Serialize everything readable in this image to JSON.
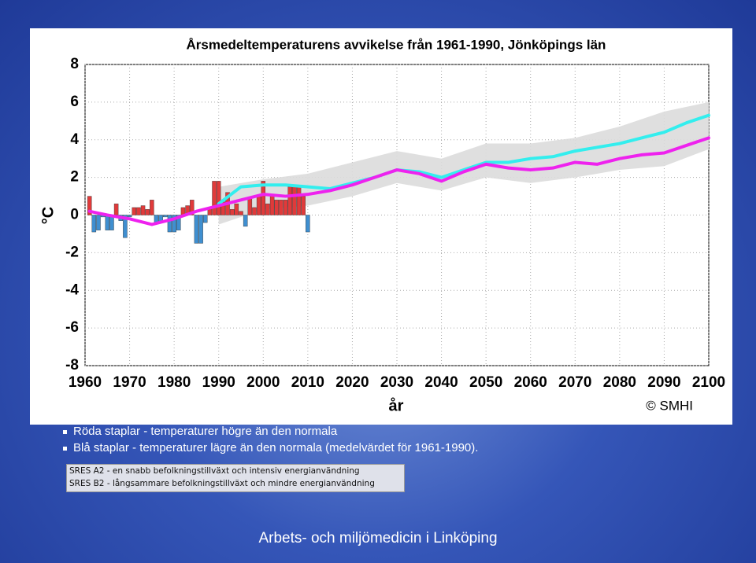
{
  "chart_data": {
    "type": "bar",
    "title": "Årsmedeltemperaturens avvikelse från 1961-1990, Jönköpings län",
    "xlabel": "år",
    "ylabel": "°C",
    "credit": "© SMHI",
    "xlim": [
      1960,
      2100
    ],
    "ylim": [
      -8,
      8
    ],
    "xticks": [
      1960,
      1970,
      1980,
      1990,
      2000,
      2010,
      2020,
      2030,
      2040,
      2050,
      2060,
      2070,
      2080,
      2090,
      2100
    ],
    "yticks": [
      -8,
      -6,
      -4,
      -2,
      0,
      2,
      4,
      6,
      8
    ],
    "grid": true,
    "series": [
      {
        "type": "band",
        "color": "#dcdcdc",
        "x": [
          1990,
          2000,
          2010,
          2020,
          2030,
          2040,
          2050,
          2060,
          2070,
          2080,
          2090,
          2100
        ],
        "low": [
          -0.5,
          0.3,
          0.5,
          1.0,
          1.7,
          1.3,
          2.0,
          1.7,
          2.0,
          2.4,
          2.6,
          3.5
        ],
        "high": [
          1.5,
          1.9,
          2.2,
          2.8,
          3.4,
          3.0,
          3.8,
          3.8,
          4.1,
          4.7,
          5.5,
          6.0
        ]
      },
      {
        "type": "bar",
        "colors": {
          "positive": "#e03a3a",
          "negative": "#3f8fd0"
        },
        "x": [
          1961,
          1962,
          1963,
          1964,
          1965,
          1966,
          1967,
          1968,
          1969,
          1970,
          1971,
          1972,
          1973,
          1974,
          1975,
          1976,
          1977,
          1978,
          1979,
          1980,
          1981,
          1982,
          1983,
          1984,
          1985,
          1986,
          1987,
          1988,
          1989,
          1990,
          1991,
          1992,
          1993,
          1994,
          1995,
          1996,
          1997,
          1998,
          1999,
          2000,
          2001,
          2002,
          2003,
          2004,
          2005,
          2006,
          2007,
          2008,
          2009,
          2010
        ],
        "values": [
          1.0,
          -0.9,
          -0.8,
          -0.1,
          -0.8,
          -0.8,
          0.6,
          -0.3,
          -1.2,
          -0.1,
          0.4,
          0.4,
          0.5,
          0.3,
          0.8,
          -0.4,
          -0.4,
          -0.1,
          -0.9,
          -0.9,
          -0.8,
          0.4,
          0.5,
          0.8,
          -1.5,
          -1.5,
          -0.4,
          0.4,
          1.8,
          1.8,
          0.7,
          1.2,
          0.3,
          0.6,
          0.2,
          -0.6,
          0.9,
          0.4,
          1.0,
          1.8,
          0.6,
          1.0,
          0.8,
          0.8,
          0.8,
          1.5,
          1.6,
          1.5,
          1.0,
          -0.9
        ]
      },
      {
        "type": "line",
        "color": "#33eeee",
        "x": [
          1961,
          1965,
          1970,
          1975,
          1980,
          1985,
          1990,
          1995,
          2000,
          2005,
          2010,
          2015,
          2020,
          2025,
          2030,
          2035,
          2040,
          2045,
          2050,
          2055,
          2060,
          2065,
          2070,
          2075,
          2080,
          2085,
          2090,
          2095,
          2100
        ],
        "values": [
          null,
          null,
          null,
          null,
          null,
          null,
          0.6,
          1.5,
          1.6,
          1.6,
          1.5,
          1.4,
          1.7,
          2.0,
          2.4,
          2.3,
          2.0,
          2.4,
          2.8,
          2.8,
          3.0,
          3.1,
          3.4,
          3.6,
          3.8,
          4.1,
          4.4,
          4.9,
          5.3
        ]
      },
      {
        "type": "line",
        "color": "#ee22ee",
        "x": [
          1961,
          1965,
          1970,
          1975,
          1980,
          1985,
          1990,
          1995,
          2000,
          2005,
          2010,
          2015,
          2020,
          2025,
          2030,
          2035,
          2040,
          2045,
          2050,
          2055,
          2060,
          2065,
          2070,
          2075,
          2080,
          2085,
          2090,
          2095,
          2100
        ],
        "values": [
          0.2,
          0.0,
          -0.2,
          -0.5,
          -0.2,
          0.2,
          0.5,
          0.8,
          1.1,
          1.0,
          1.1,
          1.3,
          1.6,
          2.0,
          2.4,
          2.2,
          1.8,
          2.3,
          2.7,
          2.5,
          2.4,
          2.5,
          2.8,
          2.7,
          3.0,
          3.2,
          3.3,
          3.7,
          4.1
        ]
      }
    ]
  },
  "notes": {
    "bullets": [
      "Röda staplar - temperaturer högre än den normala",
      "Blå staplar - temperaturer lägre än den normala (medelvärdet för 1961-1990)."
    ],
    "scenarios": [
      "SRES A2 - en snabb befolkningstillväxt och intensiv energianvändning",
      "SRES B2 - långsammare befolkningstillväxt och mindre energianvändning"
    ]
  },
  "footer": "Arbets- och miljömedicin i Linköping"
}
